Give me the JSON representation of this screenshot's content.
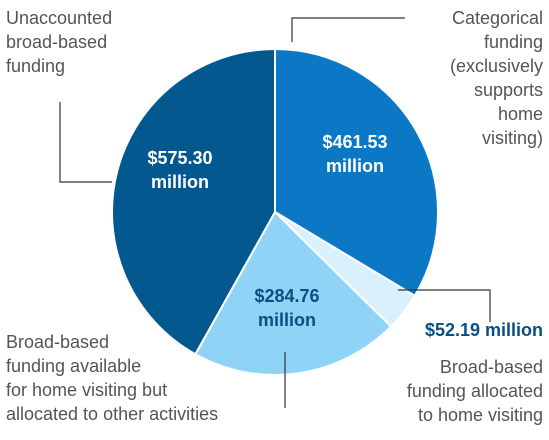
{
  "chart_data": {
    "type": "pie",
    "categories": [
      "Categorical\nfunding\n(exclusively\nsupports\nhome\nvisiting)",
      "Broad-based\nfunding allocated\nto home visiting",
      "Broad-based\nfunding available\nfor home visiting but\nallocated to other activities",
      "Unaccounted\nbroad-based\nfunding"
    ],
    "values": [
      461.53,
      52.19,
      284.76,
      575.3
    ],
    "value_labels": [
      "$461.53\nmillion",
      "$52.19 million",
      "$284.76\nmillion",
      "$575.30\nmillion"
    ],
    "colors": [
      "#0b78c6",
      "#d8f1fc",
      "#8fd4f6",
      "#03588f"
    ]
  }
}
